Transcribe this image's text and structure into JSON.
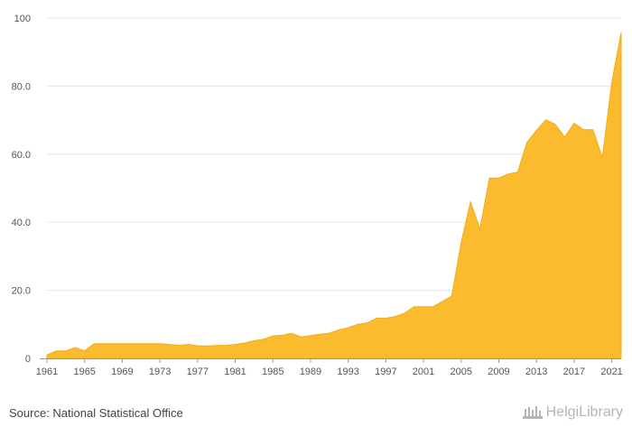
{
  "chart_data": {
    "type": "area",
    "title": "",
    "xlabel": "",
    "ylabel": "",
    "ylim": [
      0,
      100
    ],
    "xlim": [
      1961,
      2022
    ],
    "y_ticks": [
      "0",
      "20.0",
      "40.0",
      "60.0",
      "80.0",
      "100"
    ],
    "y_tick_values": [
      0,
      20,
      40,
      60,
      80,
      100
    ],
    "x_ticks": [
      "1961",
      "1965",
      "1969",
      "1973",
      "1977",
      "1981",
      "1985",
      "1989",
      "1993",
      "1997",
      "2001",
      "2005",
      "2009",
      "2013",
      "2017",
      "2021"
    ],
    "grid": true,
    "legend": "none",
    "color": "#fbbb2f",
    "x": [
      1961,
      1962,
      1963,
      1964,
      1965,
      1966,
      1967,
      1968,
      1969,
      1970,
      1971,
      1972,
      1973,
      1974,
      1975,
      1976,
      1977,
      1978,
      1979,
      1980,
      1981,
      1982,
      1983,
      1984,
      1985,
      1986,
      1987,
      1988,
      1989,
      1990,
      1991,
      1992,
      1993,
      1994,
      1995,
      1996,
      1997,
      1998,
      1999,
      2000,
      2001,
      2002,
      2003,
      2004,
      2005,
      2006,
      2007,
      2008,
      2009,
      2010,
      2011,
      2012,
      2013,
      2014,
      2015,
      2016,
      2017,
      2018,
      2019,
      2020,
      2021,
      2022
    ],
    "values": [
      1.0,
      2.2,
      2.2,
      3.2,
      2.2,
      4.3,
      4.3,
      4.3,
      4.3,
      4.3,
      4.3,
      4.3,
      4.3,
      4.1,
      3.8,
      4.1,
      3.7,
      3.6,
      3.8,
      3.8,
      4.1,
      4.5,
      5.2,
      5.6,
      6.6,
      6.8,
      7.4,
      6.3,
      6.7,
      7.1,
      7.4,
      8.4,
      9.0,
      10.0,
      10.4,
      11.8,
      11.8,
      12.3,
      13.3,
      15.2,
      15.2,
      15.2,
      16.7,
      18.3,
      34.0,
      46.0,
      38.0,
      53.0,
      53.0,
      54.2,
      54.7,
      63.5,
      67.0,
      70.1,
      68.8,
      65.0,
      69.1,
      67.2,
      67.2,
      59.0,
      81.0,
      95.8
    ]
  },
  "footer": {
    "source": "Source: National Statistical Office",
    "logo_text": "HelgiLibrary"
  }
}
